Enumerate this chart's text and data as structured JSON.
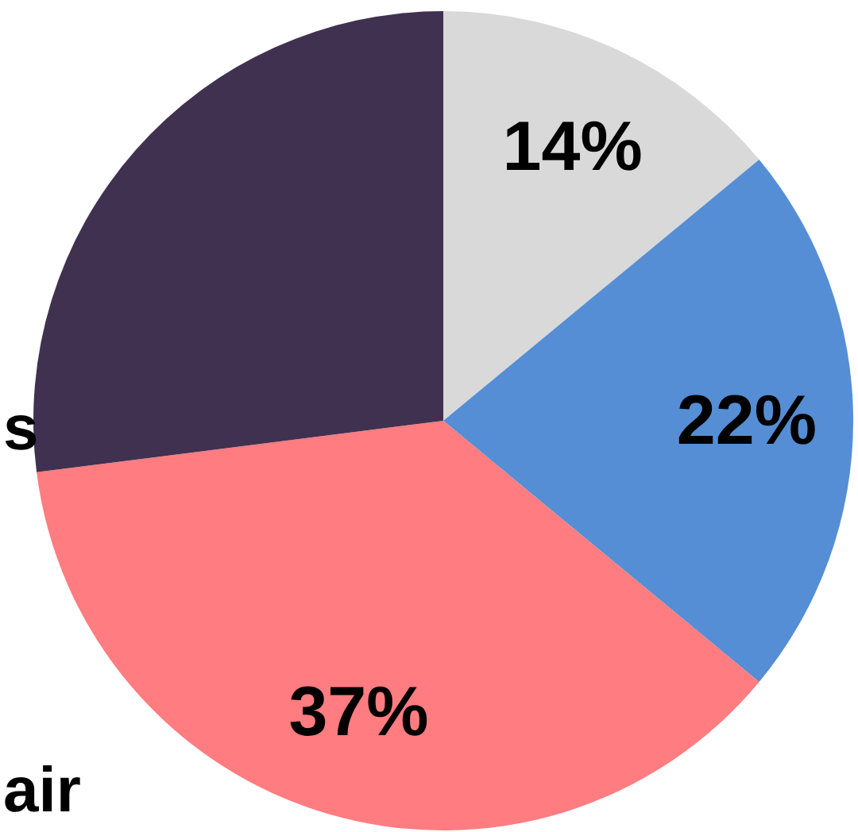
{
  "chart_data": {
    "type": "pie",
    "categories": [
      null,
      null,
      null,
      null
    ],
    "values": [
      14,
      22,
      37,
      27
    ],
    "value_labels": [
      "14%",
      "22%",
      "37%",
      null
    ],
    "colors": [
      "#d9d9d9",
      "#558ed5",
      "#ff7c80",
      "#403151"
    ],
    "annotations": [
      "s",
      "air"
    ]
  }
}
